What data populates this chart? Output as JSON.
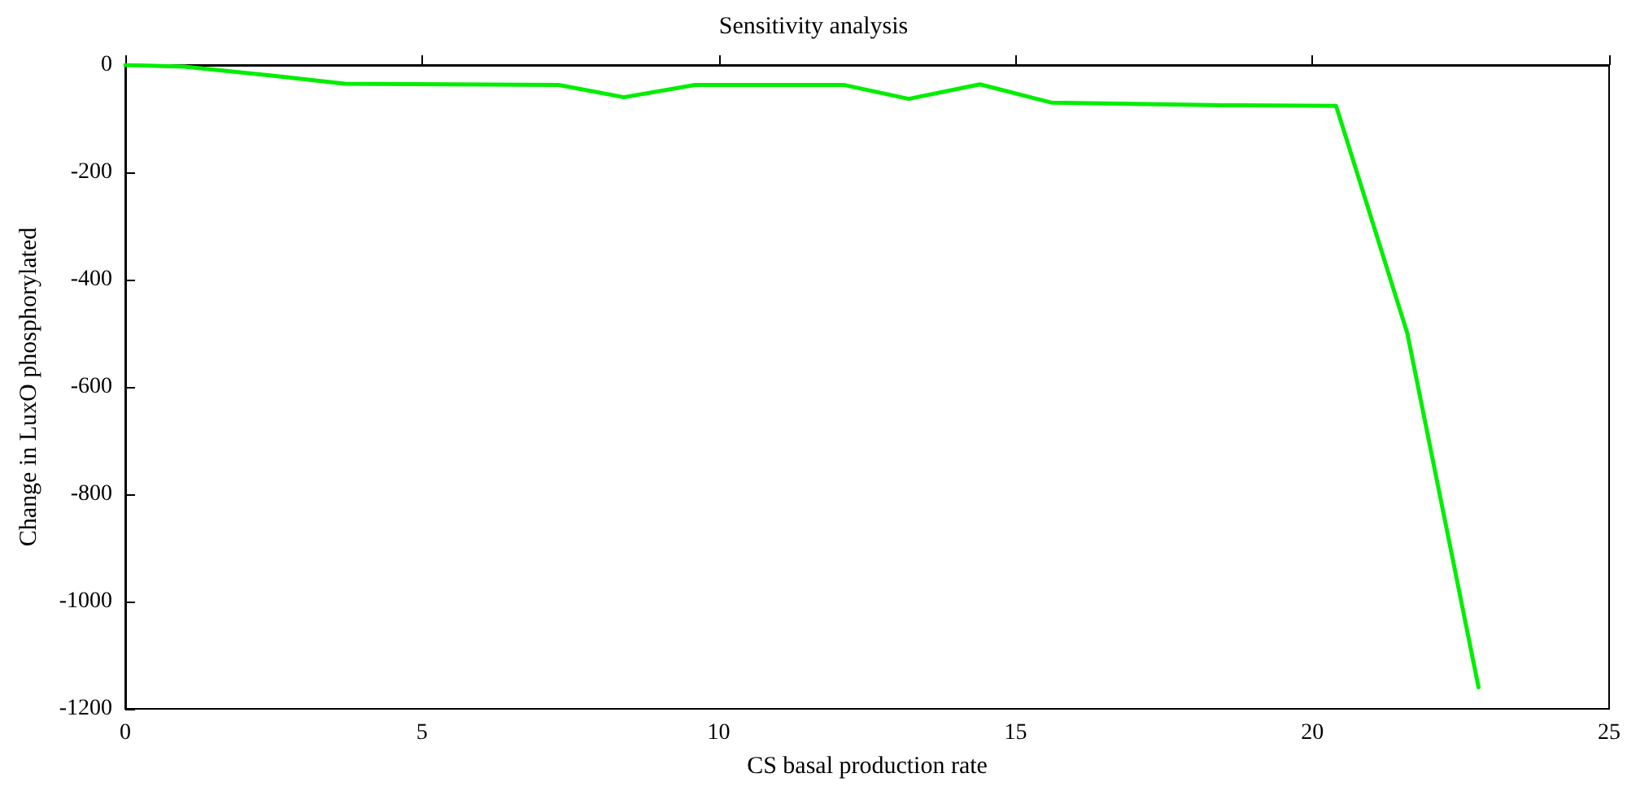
{
  "chart_data": {
    "type": "line",
    "title": "Sensitivity analysis",
    "xlabel": "CS basal production rate",
    "ylabel": "Change in LuxO phosphorylated",
    "x": [
      0,
      1,
      2.5,
      3.7,
      7.3,
      8.4,
      9.6,
      12.1,
      13.2,
      14.4,
      15.6,
      18.5,
      20.4,
      21.6,
      22.8
    ],
    "series": [
      {
        "color": "#00ee00",
        "values": [
          0,
          -3,
          -20,
          -35,
          -37,
          -60,
          -37,
          -37,
          -63,
          -36,
          -70,
          -75,
          -76,
          -500,
          -1160
        ]
      }
    ],
    "xlim": [
      0,
      25
    ],
    "xticks": [
      0,
      5,
      10,
      15,
      20,
      25
    ],
    "ylim": [
      -1200,
      0
    ],
    "yticks": [
      -1200,
      -1000,
      -800,
      -600,
      -400,
      -200,
      0
    ],
    "grid": false,
    "marker": "none",
    "line_style": "solid"
  }
}
